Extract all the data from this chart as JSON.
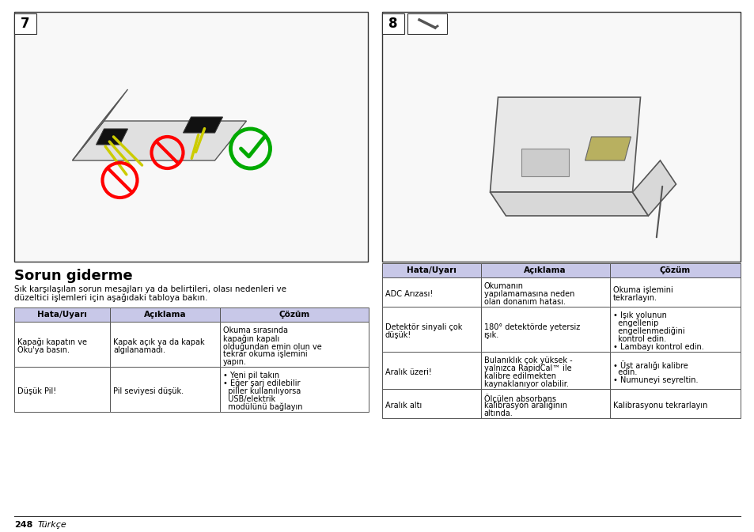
{
  "page_bg": "#ffffff",
  "title": "Sorun giderme",
  "intro_text": "Sık karşılaşılan sorun mesajları ya da belirtileri, olası nedenleri ve\ndüzeltici işlemleri için aşağıdaki tabloya bakın.",
  "footer_text": "248   Türkçe",
  "left_table_header": [
    "Hata/Uyarı",
    "Açıklama",
    "Çözüm"
  ],
  "left_table_rows": [
    [
      "Kapağı kapatın ve\nOku'ya basın.",
      "Kapak açık ya da kapak\nalgılanamadı.",
      "Okuma sırasında\nkapağın kapalı\nolduğundan emin olun ve\ntekrar okuma işlemini\nyapın."
    ],
    [
      "Düşük Pil!",
      "Pil seviyesi düşük.",
      "• Yeni pil takın\n• Eğer şarj edilebilir\n  piller kullanılıyorsa\n  USB/elektrik\n  modülünü bağlayın"
    ]
  ],
  "right_table_header": [
    "Hata/Uyarı",
    "Açıklama",
    "Çözüm"
  ],
  "right_table_rows": [
    [
      "ADC Arızası!",
      "Okumanın\nyapılamamasına neden\nolan donanım hatası.",
      "Okuma işlemini\ntekrarlayın."
    ],
    [
      "Detektör sinyali çok\ndüşük!",
      "180° detektörde yetersiz\nışık.",
      "• Işık yolunun\n  engellenip\n  engellenmediğini\n  kontrol edin.\n• Lambayı kontrol edin."
    ],
    [
      "Aralık üzeri!",
      "Bulanıklık çok yüksek -\nyalnızca RapidCal™ ile\nkalibre edilmekten\nkaynaklanıyor olabilir.",
      "• Üst aralığı kalibre\n  edin.\n• Numuneyi seyreltin."
    ],
    [
      "Aralık altı",
      "Ölçülen absorbans\nkalibrasyon aralığının\naltında.",
      "Kalibrasyonu tekrarlayın"
    ]
  ],
  "header_bg": "#c8c8e8",
  "border_color": "#555555",
  "text_color": "#000000",
  "title_fontsize": 13,
  "body_fontsize": 7.0,
  "header_fontsize": 7.5,
  "img_bg": "#f8f8f8"
}
